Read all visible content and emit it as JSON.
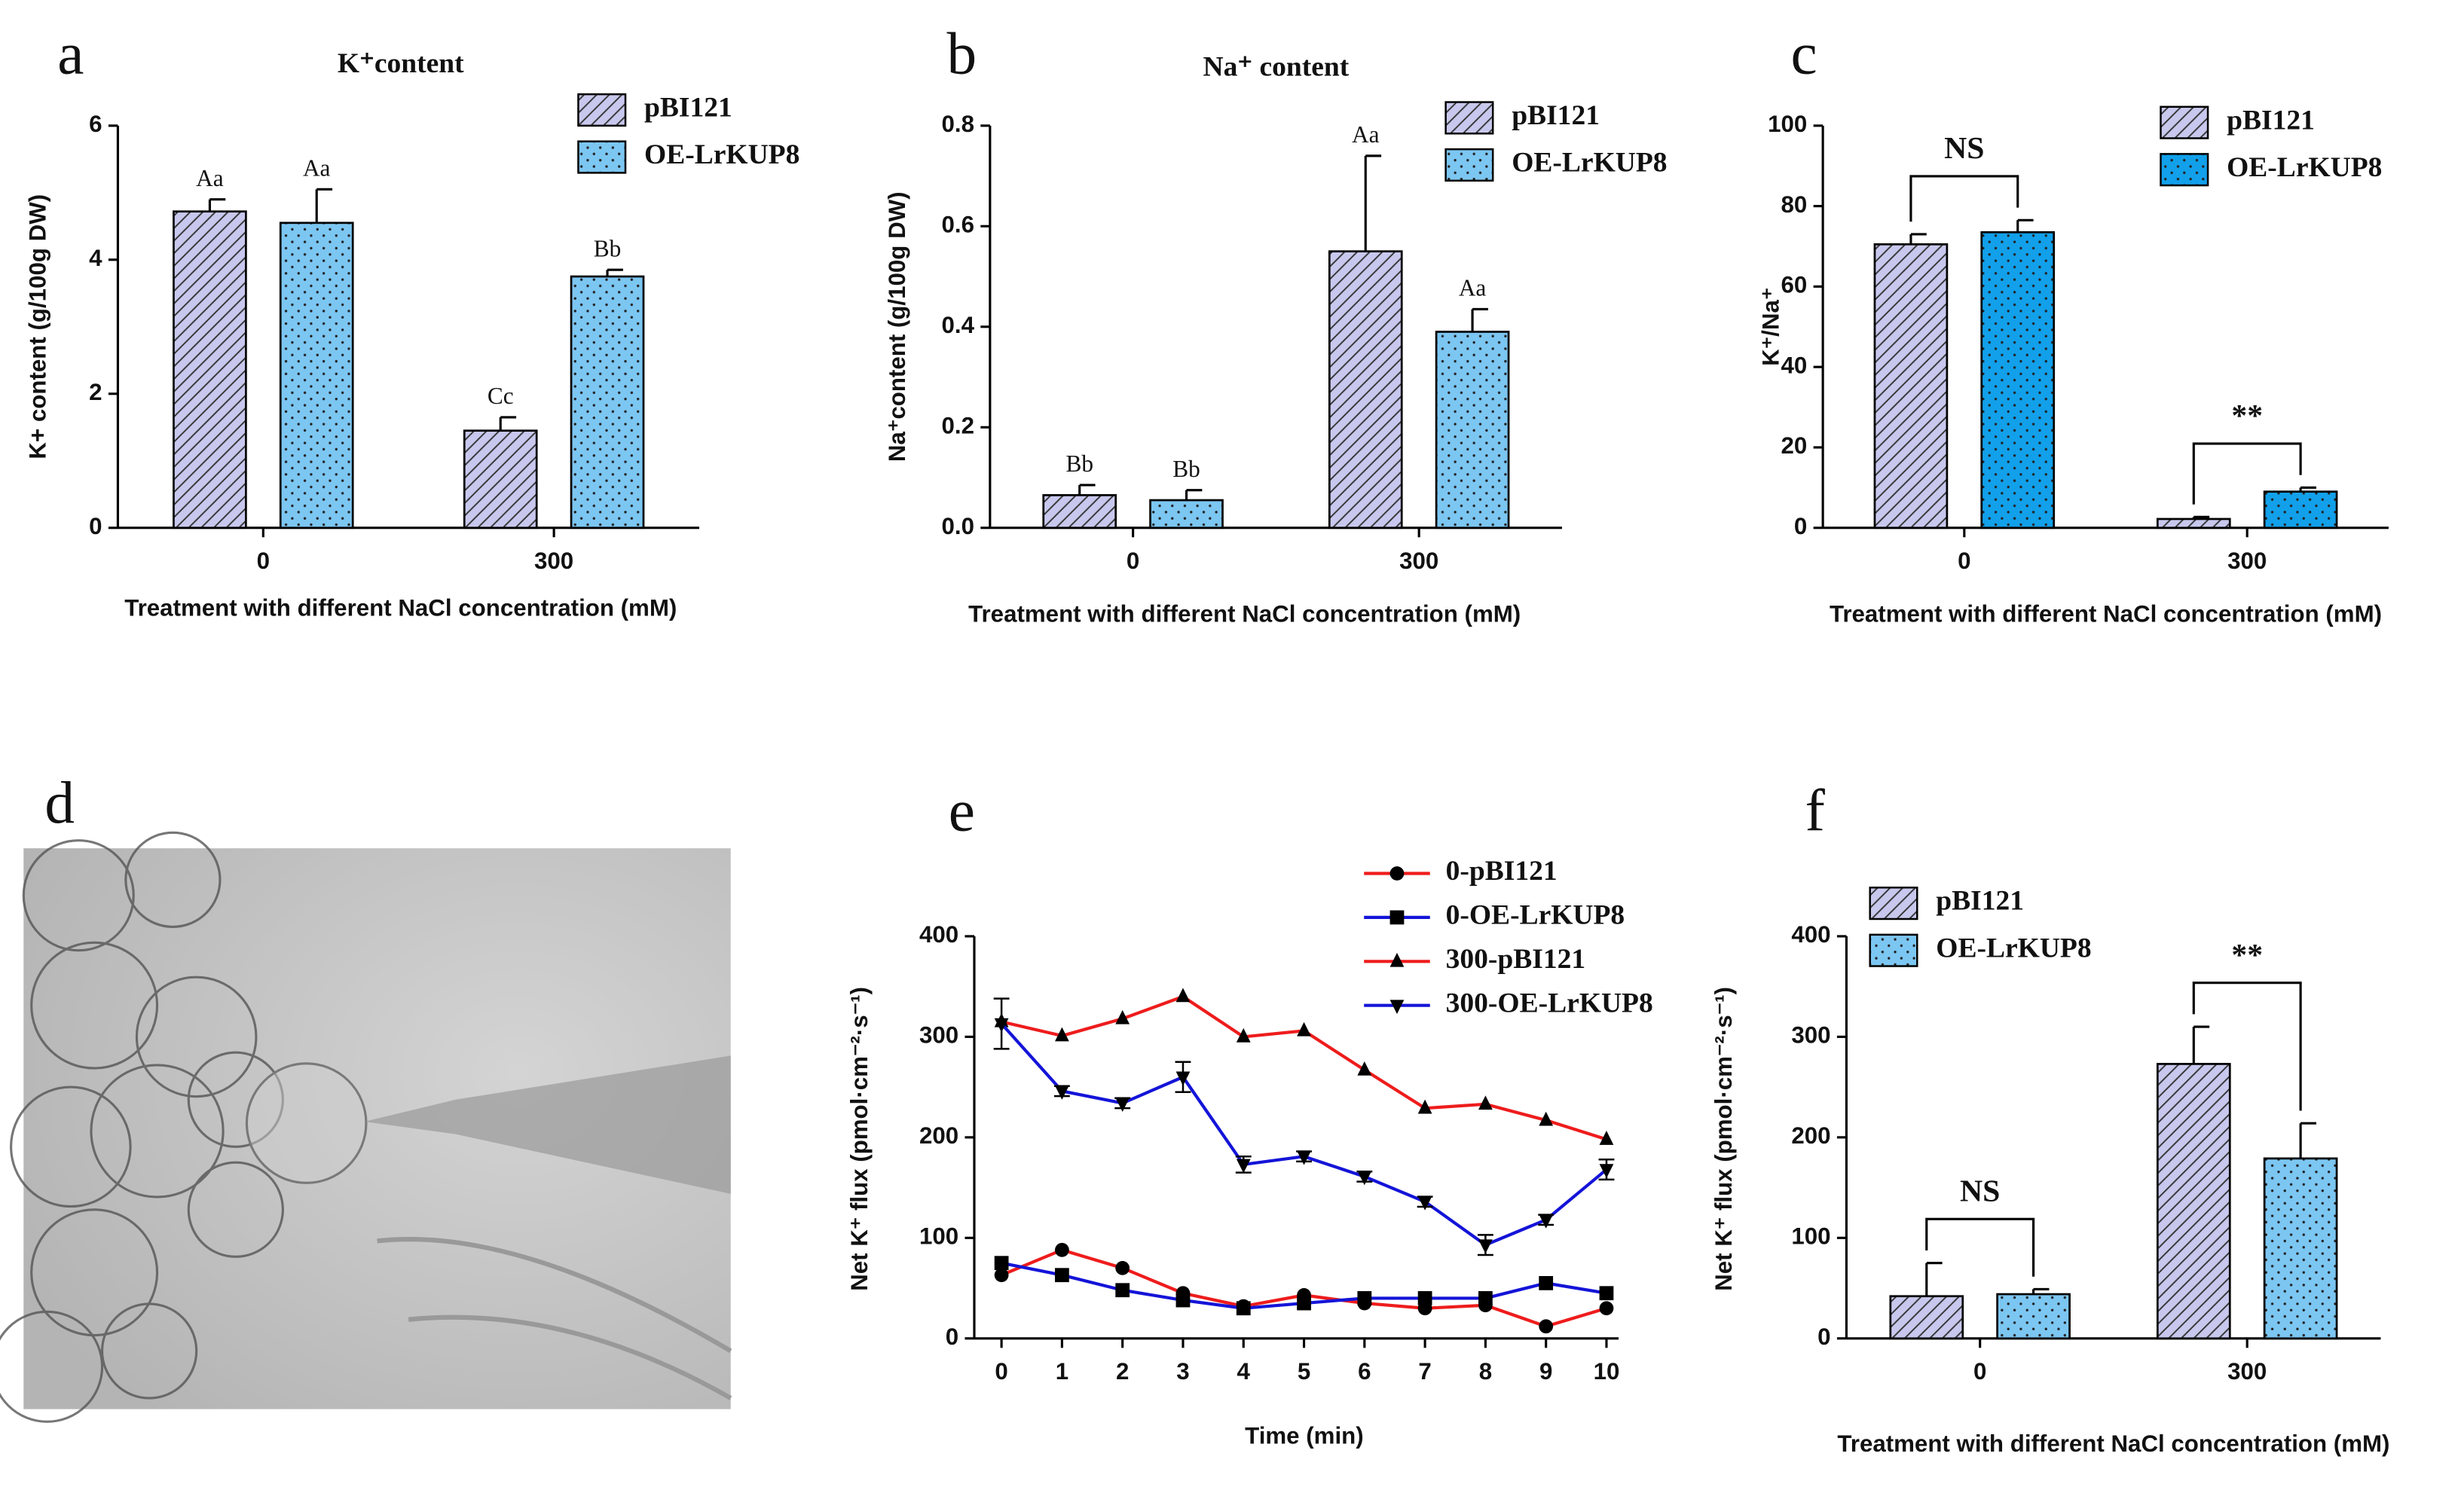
{
  "chart_data": [
    {
      "type": "bar",
      "panel": "a",
      "title": "K⁺content",
      "xlabel": "Treatment with different NaCl concentration (mM)",
      "ylabel": "K+ content (g/100g DW)",
      "categories": [
        "0",
        "300"
      ],
      "ylim": [
        0,
        6
      ],
      "yticks": [
        0,
        2,
        4,
        6
      ],
      "legend": "upper right",
      "series": [
        {
          "name": "pBI121",
          "color": "#c8c8ee",
          "pattern": "hatch",
          "values": [
            4.72,
            1.45
          ],
          "errors": [
            0.18,
            0.2
          ],
          "letters": [
            "Aa",
            "Cc"
          ]
        },
        {
          "name": "OE-LrKUP8",
          "color": "#7cc6f2",
          "pattern": "dots",
          "values": [
            4.55,
            3.75
          ],
          "errors": [
            0.5,
            0.1
          ],
          "letters": [
            "Aa",
            "Bb"
          ]
        }
      ]
    },
    {
      "type": "bar",
      "panel": "b",
      "title": "Na⁺ content",
      "xlabel": "Treatment with different NaCl concentration (mM)",
      "ylabel": "Na⁺content (g/100g DW)",
      "categories": [
        "0",
        "300"
      ],
      "ylim": [
        0,
        0.8
      ],
      "yticks": [
        {
          "value": 0,
          "label": "0.0"
        },
        0.2,
        0.4,
        0.6,
        0.8
      ],
      "legend": "upper right",
      "series": [
        {
          "name": "pBI121",
          "color": "#c8c8ee",
          "pattern": "hatch",
          "values": [
            0.065,
            0.55
          ],
          "errors": [
            0.02,
            0.19
          ],
          "letters": [
            "Bb",
            "Aa"
          ]
        },
        {
          "name": "OE-LrKUP8",
          "color": "#7cc6f2",
          "pattern": "dots",
          "values": [
            0.055,
            0.39
          ],
          "errors": [
            0.02,
            0.045
          ],
          "letters": [
            "Bb",
            "Aa"
          ]
        }
      ]
    },
    {
      "type": "bar",
      "panel": "c",
      "xlabel": "Treatment with different NaCl concentration (mM)",
      "ylabel": "K⁺/Na⁺",
      "categories": [
        "0",
        "300"
      ],
      "ylim": [
        0,
        100
      ],
      "yticks": [
        0,
        20,
        40,
        60,
        80,
        100
      ],
      "legend": "upper right",
      "annotations": [
        "NS",
        "**"
      ],
      "series": [
        {
          "name": "pBI121",
          "color": "#c8c8ee",
          "pattern": "hatch",
          "values": [
            70.5,
            2.2
          ],
          "errors": [
            2.5,
            0.5
          ]
        },
        {
          "name": "OE-LrKUP8",
          "color": "#12a0ea",
          "pattern": "dots",
          "values": [
            73.5,
            9
          ],
          "errors": [
            3,
            1
          ]
        }
      ]
    },
    {
      "type": "image",
      "panel": "d"
    },
    {
      "type": "line",
      "panel": "e",
      "xlabel": "Time (min)",
      "ylabel": "Net K⁺ flux (pmol·cm⁻²·s⁻¹)",
      "x": [
        0,
        1,
        2,
        3,
        4,
        5,
        6,
        7,
        8,
        9,
        10
      ],
      "xlim": [
        -0.45,
        10.2
      ],
      "xticks": [
        0,
        1,
        2,
        3,
        4,
        5,
        6,
        7,
        8,
        9,
        10
      ],
      "ylim": [
        0,
        400
      ],
      "yticks": [
        0,
        100,
        200,
        300,
        400
      ],
      "legend": "upper right",
      "series": [
        {
          "name": "0-pBI121",
          "color": "#ee1c1c",
          "marker": "circle",
          "values": [
            63,
            88,
            70,
            45,
            32,
            43,
            35,
            30,
            33,
            12,
            30
          ]
        },
        {
          "name": "0-OE-LrKUP8",
          "color": "#1414d8",
          "marker": "square",
          "values": [
            75,
            63,
            48,
            38,
            30,
            35,
            40,
            40,
            40,
            55,
            45
          ]
        },
        {
          "name": "300-pBI121",
          "color": "#ee1c1c",
          "marker": "triangle-up",
          "values": [
            315,
            301,
            318,
            340,
            300,
            306,
            267,
            229,
            233,
            217,
            198
          ]
        },
        {
          "name": "300-OE-LrKUP8",
          "color": "#1414d8",
          "marker": "triangle-down",
          "values": [
            313,
            246,
            234,
            260,
            173,
            181,
            161,
            136,
            93,
            118,
            168
          ],
          "errors": [
            25,
            5,
            5,
            15,
            8,
            5,
            5,
            5,
            10,
            5,
            10
          ]
        }
      ]
    },
    {
      "type": "bar",
      "panel": "f",
      "xlabel": "Treatment with different NaCl concentration (mM)",
      "ylabel": "Net K⁺ flux (pmol·cm⁻²·s⁻¹)",
      "categories": [
        "0",
        "300"
      ],
      "ylim": [
        0,
        400
      ],
      "yticks": [
        0,
        100,
        200,
        300,
        400
      ],
      "legend": "upper left",
      "annotations": [
        "NS",
        "**"
      ],
      "series": [
        {
          "name": "pBI121",
          "color": "#c8c8ee",
          "pattern": "hatch",
          "values": [
            42,
            273
          ],
          "errors": [
            33,
            37
          ]
        },
        {
          "name": "OE-LrKUP8",
          "color": "#7cc6f2",
          "pattern": "dots",
          "values": [
            44,
            179
          ],
          "errors": [
            5,
            35
          ]
        }
      ]
    }
  ]
}
